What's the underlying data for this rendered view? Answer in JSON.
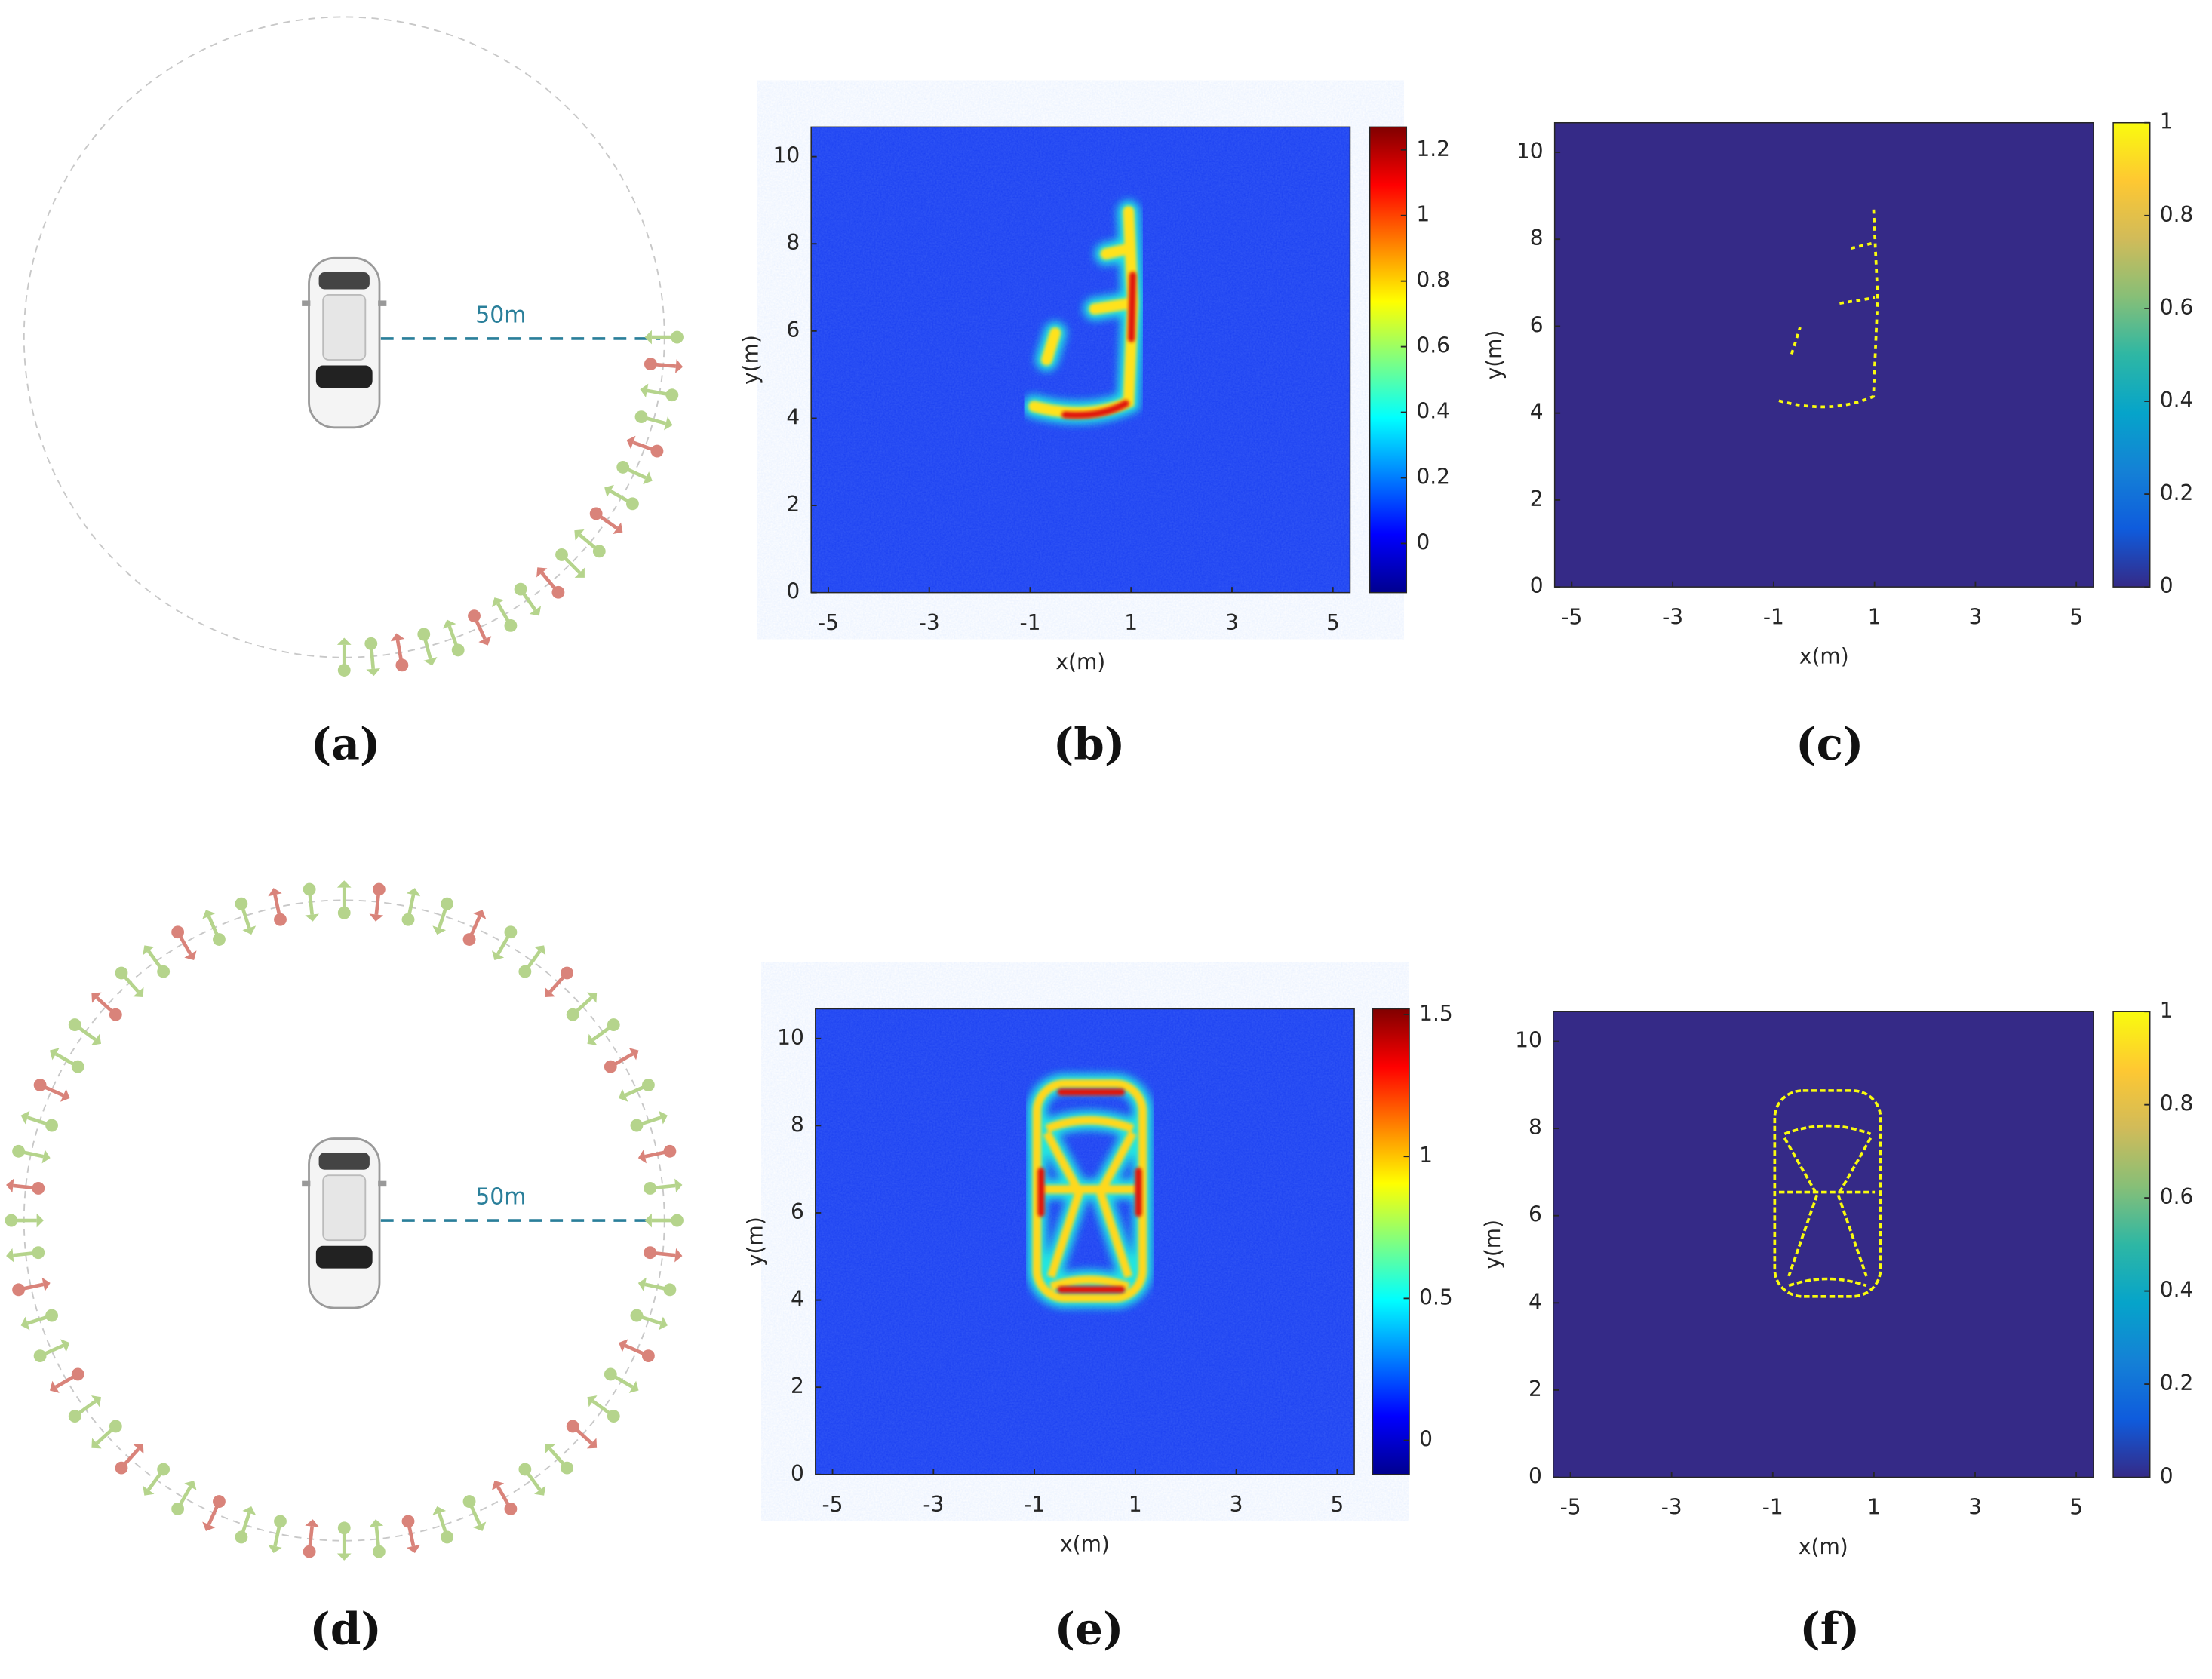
{
  "diagrams": [
    {
      "distance_label": "50m",
      "caption": "(a)"
    },
    {
      "distance_label": "50m",
      "caption": "(d)"
    }
  ],
  "chart_data": [
    {
      "type": "heatmap",
      "caption": "(b)",
      "xlabel": "x(m)",
      "ylabel": "y(m)",
      "xlim": [
        -5.34,
        5.34
      ],
      "ylim": [
        0,
        10.68
      ],
      "xticks": [
        -5,
        -3,
        -1,
        1,
        3,
        5
      ],
      "yticks": [
        0,
        2,
        4,
        6,
        8,
        10
      ],
      "colormap": "jet",
      "clim": [
        -0.15,
        1.27
      ],
      "cticks": [
        0,
        0.2,
        0.4,
        0.6,
        0.8,
        1,
        1.2
      ]
    },
    {
      "type": "heatmap",
      "caption": "(c)",
      "xlabel": "x(m)",
      "ylabel": "y(m)",
      "xlim": [
        -5.34,
        5.34
      ],
      "ylim": [
        0,
        10.68
      ],
      "xticks": [
        -5,
        -3,
        -1,
        1,
        3,
        5
      ],
      "yticks": [
        0,
        2,
        4,
        6,
        8,
        10
      ],
      "colormap": "parula",
      "clim": [
        0,
        1
      ],
      "cticks": [
        0,
        0.2,
        0.4,
        0.6,
        0.8,
        1
      ]
    },
    {
      "type": "heatmap",
      "caption": "(e)",
      "xlabel": "x(m)",
      "ylabel": "y(m)",
      "xlim": [
        -5.34,
        5.34
      ],
      "ylim": [
        0,
        10.68
      ],
      "xticks": [
        -5,
        -3,
        -1,
        1,
        3,
        5
      ],
      "yticks": [
        0,
        2,
        4,
        6,
        8,
        10
      ],
      "colormap": "jet",
      "clim": [
        -0.12,
        1.52
      ],
      "cticks": [
        0,
        0.5,
        1,
        1.5
      ]
    },
    {
      "type": "heatmap",
      "caption": "(f)",
      "xlabel": "x(m)",
      "ylabel": "y(m)",
      "xlim": [
        -5.34,
        5.34
      ],
      "ylim": [
        0,
        10.68
      ],
      "xticks": [
        -5,
        -3,
        -1,
        1,
        3,
        5
      ],
      "yticks": [
        0,
        2,
        4,
        6,
        8,
        10
      ],
      "colormap": "parula",
      "clim": [
        0,
        1
      ],
      "cticks": [
        0,
        0.2,
        0.4,
        0.6,
        0.8,
        1
      ]
    }
  ]
}
